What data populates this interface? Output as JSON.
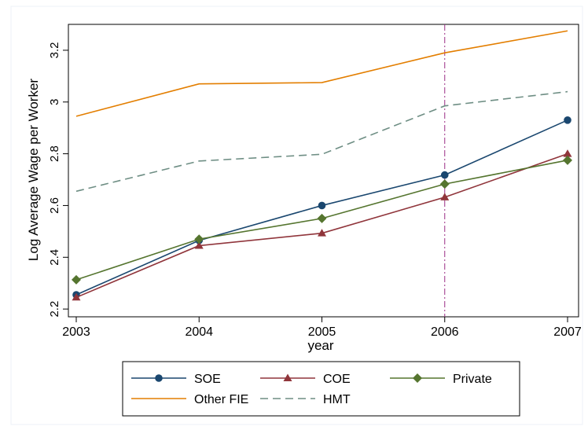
{
  "chart_data": {
    "type": "line",
    "title": "",
    "xlabel": "year",
    "ylabel": "Log Average Wage per Worker",
    "x": [
      2003,
      2004,
      2005,
      2006,
      2007
    ],
    "xlim": [
      2003,
      2007
    ],
    "ylim": [
      2.17,
      3.3
    ],
    "x_ticks": [
      "2003",
      "2004",
      "2005",
      "2006",
      "2007"
    ],
    "y_ticks": [
      "2.2",
      "2.4",
      "2.6",
      "2.8",
      "3",
      "3.2"
    ],
    "grid": false,
    "legend_position": "bottom",
    "reference_line": {
      "x": 2006,
      "style": "dash-dot",
      "color": "#9b2f86"
    },
    "series": [
      {
        "name": "SOE",
        "values": [
          2.255,
          2.465,
          2.6,
          2.718,
          2.93
        ],
        "color": "#1a476f",
        "marker": "circle",
        "dash": "solid"
      },
      {
        "name": "COE",
        "values": [
          2.245,
          2.445,
          2.493,
          2.632,
          2.8
        ],
        "color": "#90353b",
        "marker": "triangle",
        "dash": "solid"
      },
      {
        "name": "Private",
        "values": [
          2.313,
          2.47,
          2.55,
          2.683,
          2.775
        ],
        "color": "#55752f",
        "marker": "diamond",
        "dash": "solid"
      },
      {
        "name": "Other FIE",
        "values": [
          2.945,
          3.07,
          3.075,
          3.19,
          3.275
        ],
        "color": "#e37e00",
        "marker": "none",
        "dash": "solid"
      },
      {
        "name": "HMT",
        "values": [
          2.655,
          2.772,
          2.798,
          2.985,
          3.04
        ],
        "color": "#6e8e84",
        "marker": "none",
        "dash": "dashed"
      }
    ]
  }
}
